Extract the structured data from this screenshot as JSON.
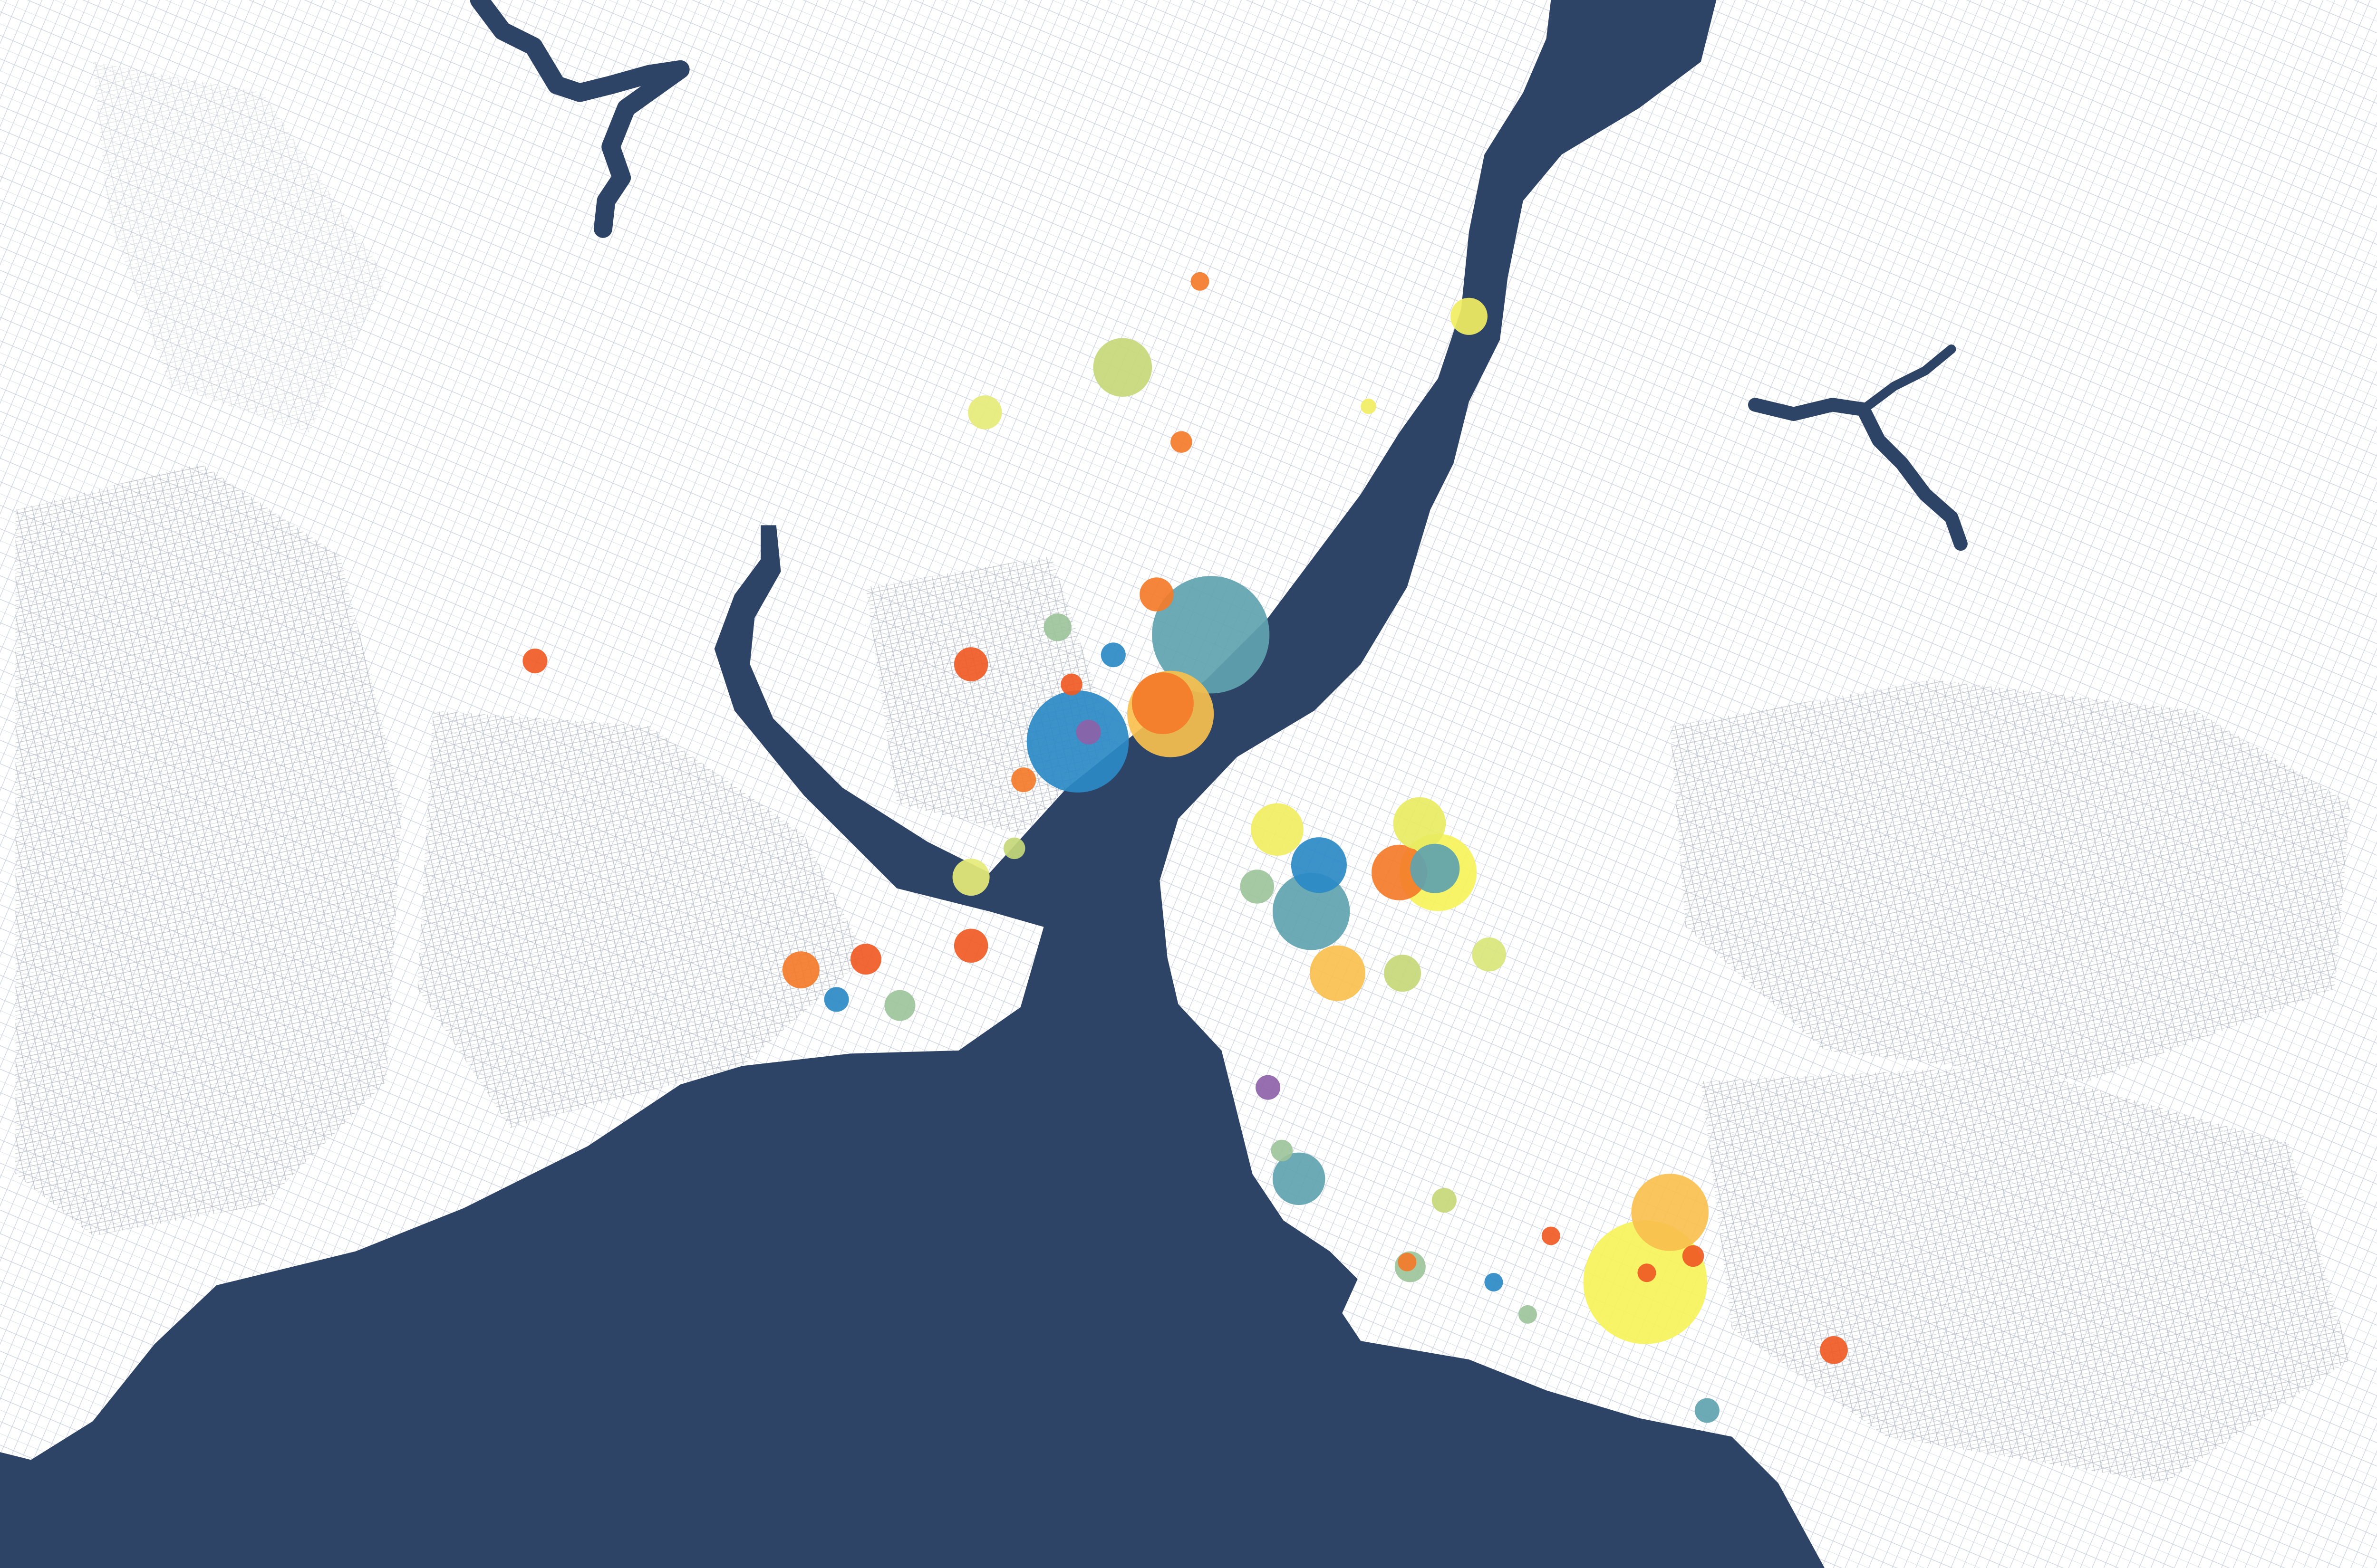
{
  "chart_data": {
    "type": "bubble-map",
    "lonlim": [
      28.78,
      29.2504
    ],
    "latlim": [
      41.14,
      40.90655
    ],
    "points": [
      {
        "lon": 29.0992,
        "lat": 40.9491,
        "value": 1600,
        "color": "#f7f35a"
      },
      {
        "lon": 29.0149,
        "lat": 41.0455,
        "value": 1444,
        "color": "#5fa3b0"
      },
      {
        "lon": 28.9891,
        "lat": 41.0296,
        "value": 1089,
        "color": "#2b8ac6"
      },
      {
        "lon": 29.0071,
        "lat": 41.0337,
        "value": 784,
        "color": "#f9c04e"
      },
      {
        "lon": 29.0344,
        "lat": 41.0043,
        "value": 625,
        "color": "#5fa3b0"
      },
      {
        "lon": 29.104,
        "lat": 40.9595,
        "value": 625,
        "color": "#f9c04e"
      },
      {
        "lon": 29.059,
        "lat": 41.0101,
        "value": 625,
        "color": "#f7f35a"
      },
      {
        "lon": 29.0056,
        "lat": 41.0353,
        "value": 400,
        "color": "#f47b2a"
      },
      {
        "lon": 28.9978,
        "lat": 41.0853,
        "value": 361,
        "color": "#c6d87a"
      },
      {
        "lon": 29.0359,
        "lat": 41.0112,
        "value": 324,
        "color": "#2b8ac6"
      },
      {
        "lon": 29.0515,
        "lat": 41.0101,
        "value": 324,
        "color": "#f47b2a"
      },
      {
        "lon": 29.0395,
        "lat": 40.9951,
        "value": 324,
        "color": "#f9c04e"
      },
      {
        "lon": 29.0554,
        "lat": 41.0174,
        "value": 289,
        "color": "#e8ec62"
      },
      {
        "lon": 29.0278,
        "lat": 41.0165,
        "value": 289,
        "color": "#f2ee62"
      },
      {
        "lon": 29.032,
        "lat": 40.9645,
        "value": 289,
        "color": "#5fa3b0"
      },
      {
        "lon": 29.0584,
        "lat": 41.0107,
        "value": 256,
        "color": "#5fa3b0"
      },
      {
        "lon": 29.065,
        "lat": 41.0929,
        "value": 144,
        "color": "#f2ee62"
      },
      {
        "lon": 28.9684,
        "lat": 41.0094,
        "value": 144,
        "color": "#e6ec78"
      },
      {
        "lon": 28.9354,
        "lat": 40.9956,
        "value": 144,
        "color": "#f47b2a"
      },
      {
        "lon": 29.0521,
        "lat": 40.9951,
        "value": 144,
        "color": "#c6d87a"
      },
      {
        "lon": 28.9711,
        "lat": 41.0786,
        "value": 121,
        "color": "#e6ec78"
      },
      {
        "lon": 28.9684,
        "lat": 41.0411,
        "value": 121,
        "color": "#f05a24"
      },
      {
        "lon": 29.0044,
        "lat": 41.0515,
        "value": 121,
        "color": "#f47b2a"
      },
      {
        "lon": 28.9684,
        "lat": 40.9992,
        "value": 121,
        "color": "#f05a24"
      },
      {
        "lon": 29.0689,
        "lat": 40.9979,
        "value": 121,
        "color": "#d8e67a"
      },
      {
        "lon": 29.0239,
        "lat": 41.008,
        "value": 121,
        "color": "#9dc49a"
      },
      {
        "lon": 28.948,
        "lat": 40.9972,
        "value": 100,
        "color": "#f05a24"
      },
      {
        "lon": 28.9546,
        "lat": 40.9903,
        "value": 100,
        "color": "#9dc49a"
      },
      {
        "lon": 29.0536,
        "lat": 40.9514,
        "value": 100,
        "color": "#9dc49a"
      },
      {
        "lon": 28.9852,
        "lat": 41.0466,
        "value": 81,
        "color": "#9dc49a"
      },
      {
        "lon": 29.1358,
        "lat": 40.939,
        "value": 81,
        "color": "#f05a24"
      },
      {
        "lon": 28.8838,
        "lat": 41.0416,
        "value": 64,
        "color": "#f05a24"
      },
      {
        "lon": 28.9423,
        "lat": 40.9912,
        "value": 64,
        "color": "#2b8ac6"
      },
      {
        "lon": 29.1112,
        "lat": 40.93,
        "value": 64,
        "color": "#5fa3b0"
      },
      {
        "lon": 29.026,
        "lat": 40.9781,
        "value": 64,
        "color": "#8e62a8"
      },
      {
        "lon": 29.0602,
        "lat": 40.9613,
        "value": 64,
        "color": "#c6d87a"
      },
      {
        "lon": 28.9912,
        "lat": 41.031,
        "value": 64,
        "color": "#8e62a8"
      },
      {
        "lon": 28.9786,
        "lat": 41.0239,
        "value": 64,
        "color": "#f47b2a"
      },
      {
        "lon": 28.996,
        "lat": 41.0425,
        "value": 64,
        "color": "#2b8ac6"
      },
      {
        "lon": 29.0092,
        "lat": 41.0742,
        "value": 49,
        "color": "#f47b2a"
      },
      {
        "lon": 29.1085,
        "lat": 40.953,
        "value": 49,
        "color": "#f05a24"
      },
      {
        "lon": 28.9879,
        "lat": 41.0381,
        "value": 49,
        "color": "#f05a24"
      },
      {
        "lon": 28.9768,
        "lat": 41.0137,
        "value": 49,
        "color": "#c6d87a"
      },
      {
        "lon": 29.0287,
        "lat": 40.9687,
        "value": 49,
        "color": "#9dc49a"
      },
      {
        "lon": 29.0128,
        "lat": 41.0981,
        "value": 36,
        "color": "#f47b2a"
      },
      {
        "lon": 29.0698,
        "lat": 40.9491,
        "value": 36,
        "color": "#2b8ac6"
      },
      {
        "lon": 29.0995,
        "lat": 40.9505,
        "value": 36,
        "color": "#f05a24"
      },
      {
        "lon": 29.053,
        "lat": 40.9521,
        "value": 36,
        "color": "#f47b2a"
      },
      {
        "lon": 29.0809,
        "lat": 40.956,
        "value": 36,
        "color": "#f05a24"
      },
      {
        "lon": 29.0764,
        "lat": 40.9443,
        "value": 36,
        "color": "#9dc49a"
      },
      {
        "lon": 29.0455,
        "lat": 41.0795,
        "value": 25,
        "color": "#f2ee62"
      }
    ]
  }
}
